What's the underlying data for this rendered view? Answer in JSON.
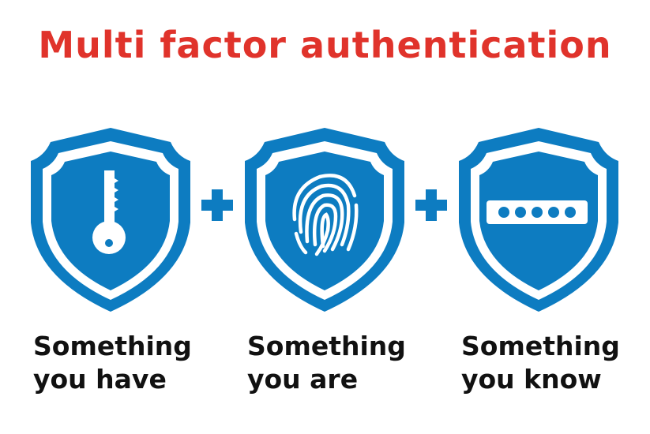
{
  "title": "Multi factor authentication",
  "colors": {
    "title": "#e0332b",
    "shield": "#0d7cc1",
    "text": "#111111",
    "background": "#ffffff"
  },
  "factors": [
    {
      "icon": "key-icon",
      "line1": "Something",
      "line2": "you have"
    },
    {
      "icon": "fingerprint-icon",
      "line1": "Something",
      "line2": "you are"
    },
    {
      "icon": "password-dots-icon",
      "line1": "Something",
      "line2": "you know"
    }
  ],
  "connectors": [
    "plus-icon",
    "plus-icon"
  ]
}
